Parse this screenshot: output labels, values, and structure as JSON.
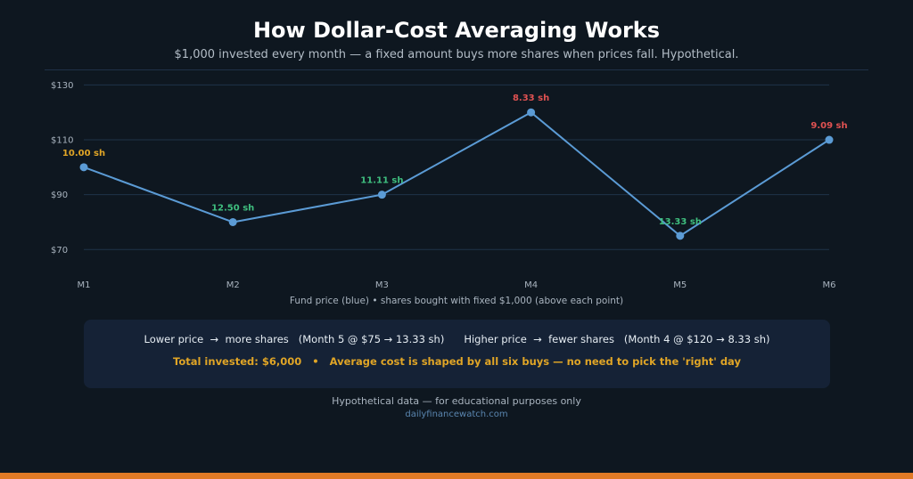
{
  "header": {
    "title": "How Dollar-Cost Averaging Works",
    "subtitle": "$1,000 invested every month — a fixed amount buys more shares when prices fall. Hypothetical."
  },
  "chart_data": {
    "type": "line",
    "categories": [
      "M1",
      "M2",
      "M3",
      "M4",
      "M5",
      "M6"
    ],
    "series": [
      {
        "values": [
          100,
          80,
          90,
          120,
          75,
          110
        ]
      }
    ],
    "point_labels": [
      "10.00 sh",
      "12.50 sh",
      "11.11 sh",
      "8.33 sh",
      "13.33 sh",
      "9.09 sh"
    ],
    "point_label_colors": [
      "#e0a526",
      "#3fbf7f",
      "#3fbf7f",
      "#e05252",
      "#3fbf7f",
      "#e05252"
    ],
    "yticks": [
      70,
      90,
      110,
      130
    ],
    "ytick_labels": [
      "$70",
      "$90",
      "$110",
      "$130"
    ],
    "ylim": [
      61,
      135
    ],
    "grid": true,
    "line_color": "#5b9bd5",
    "caption": "Fund price (blue)  •  shares bought with fixed $1,000 (above each point)"
  },
  "info": {
    "lower": "Lower price  →  more shares   (Month 5 @ $75 → 13.33 sh)",
    "higher": "Higher price  →  fewer shares   (Month 4 @ $120 → 8.33 sh)",
    "summary": "Total invested: $6,000   •   Average cost is shaped by all six buys — no need to pick the 'right' day"
  },
  "footer": {
    "note": "Hypothetical data — for educational purposes only",
    "source": "dailyfinancewatch.com"
  },
  "colors": {
    "background": "#0e1720",
    "accent_bar": "#e07a26",
    "box": "#152236",
    "gold": "#e0a526",
    "green": "#3fbf7f",
    "red": "#e05252"
  }
}
